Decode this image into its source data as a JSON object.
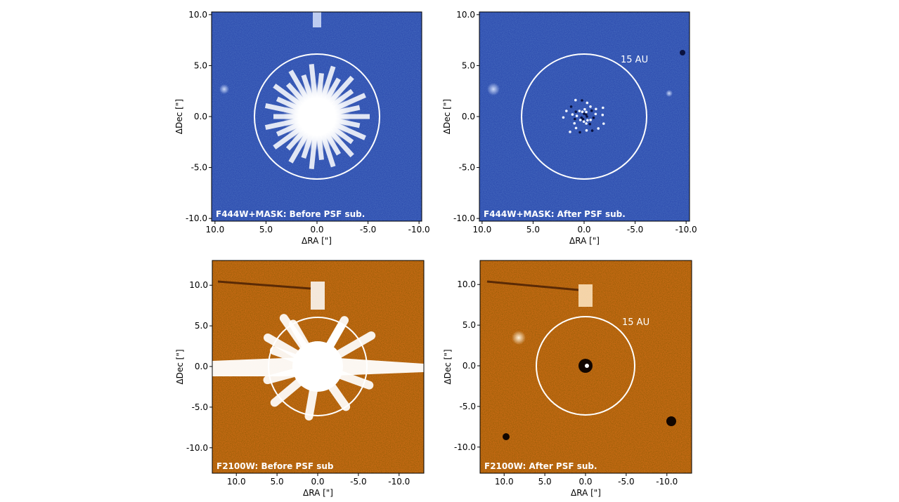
{
  "panels": [
    {
      "title": "F444W+MASK: Before PSF sub.",
      "xlabel": "ΔRA [\"]",
      "ylabel": "ΔDec [\"]",
      "xticks": [
        "10.0",
        "5.0",
        "0.0",
        "-5.0",
        "-10.0"
      ],
      "yticks": [
        "10.0",
        "5.0",
        "0.0",
        "-5.0",
        "-10.0"
      ],
      "circle_label": "",
      "colormap": "blue"
    },
    {
      "title": "F444W+MASK: After PSF sub.",
      "xlabel": "ΔRA [\"]",
      "ylabel": "ΔDec [\"]",
      "xticks": [
        "10.0",
        "5.0",
        "0.0",
        "-5.0",
        "-10.0"
      ],
      "yticks": [
        "10.0",
        "5.0",
        "0.0",
        "-5.0",
        "-10.0"
      ],
      "circle_label": "15 AU",
      "colormap": "blue"
    },
    {
      "title": "F2100W: Before PSF sub",
      "xlabel": "ΔRA [\"]",
      "ylabel": "ΔDec [\"]",
      "xticks": [
        "10.0",
        "5.0",
        "0.0",
        "-5.0",
        "-10.0"
      ],
      "yticks": [
        "10.0",
        "5.0",
        "0.0",
        "-5.0",
        "-10.0"
      ],
      "circle_label": "",
      "colormap": "orange"
    },
    {
      "title": "F2100W: After PSF sub.",
      "xlabel": "ΔRA [\"]",
      "ylabel": "ΔDec [\"]",
      "xticks": [
        "10.0",
        "5.0",
        "0.0",
        "-5.0",
        "-10.0"
      ],
      "yticks": [
        "10.0",
        "5.0",
        "0.0",
        "-5.0",
        "-10.0"
      ],
      "circle_label": "15 AU",
      "colormap": "orange"
    }
  ],
  "colors": {
    "blue_base": "#2f4fb0",
    "blue_dark": "#0e1f66",
    "blue_light": "#9fb4f0",
    "orange_base": "#c56a14",
    "orange_dark": "#5a2a05",
    "orange_light": "#ffd9a0",
    "circle": "#ffffff"
  }
}
